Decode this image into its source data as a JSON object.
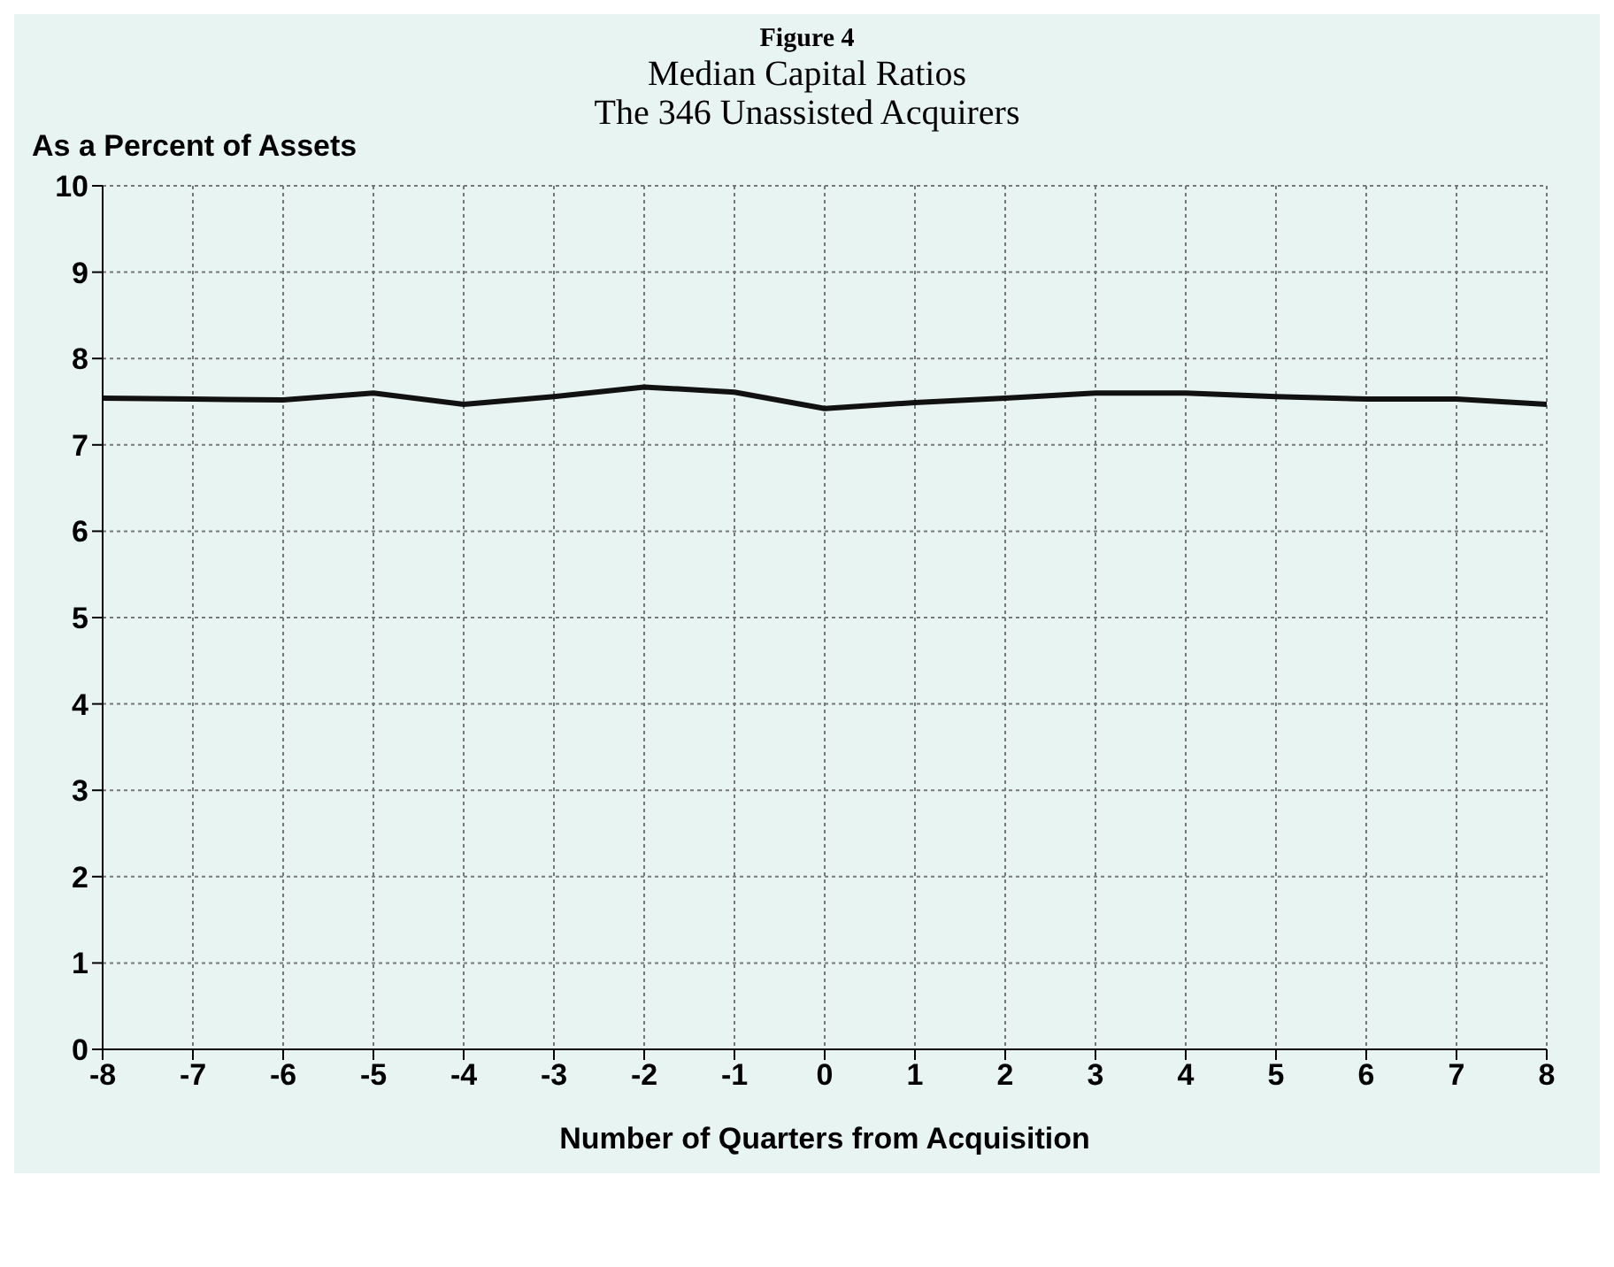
{
  "chart_data": {
    "type": "line",
    "title": "Figure 4",
    "subtitle": "Median Capital Ratios\nThe 346 Unassisted Acquirers",
    "ylabel": "As a Percent of Assets",
    "xlabel": "Number of Quarters from Acquisition",
    "x": [
      -8,
      -7,
      -6,
      -5,
      -4,
      -3,
      -2,
      -1,
      0,
      1,
      2,
      3,
      4,
      5,
      6,
      7,
      8
    ],
    "series": [
      {
        "color": "#111111",
        "values": [
          7.54,
          7.53,
          7.52,
          7.6,
          7.47,
          7.56,
          7.67,
          7.61,
          7.42,
          7.49,
          7.54,
          7.6,
          7.6,
          7.56,
          7.53,
          7.53,
          7.47
        ]
      }
    ],
    "xlim": [
      -8,
      8
    ],
    "xticks": [
      -8,
      -7,
      -6,
      -5,
      -4,
      -3,
      -2,
      -1,
      0,
      1,
      2,
      3,
      4,
      5,
      6,
      7,
      8
    ],
    "ylim": [
      0,
      10
    ],
    "yticks": [
      0,
      1,
      2,
      3,
      4,
      5,
      6,
      7,
      8,
      9,
      10
    ],
    "grid": true,
    "marker": "none",
    "line_style": "solid"
  }
}
